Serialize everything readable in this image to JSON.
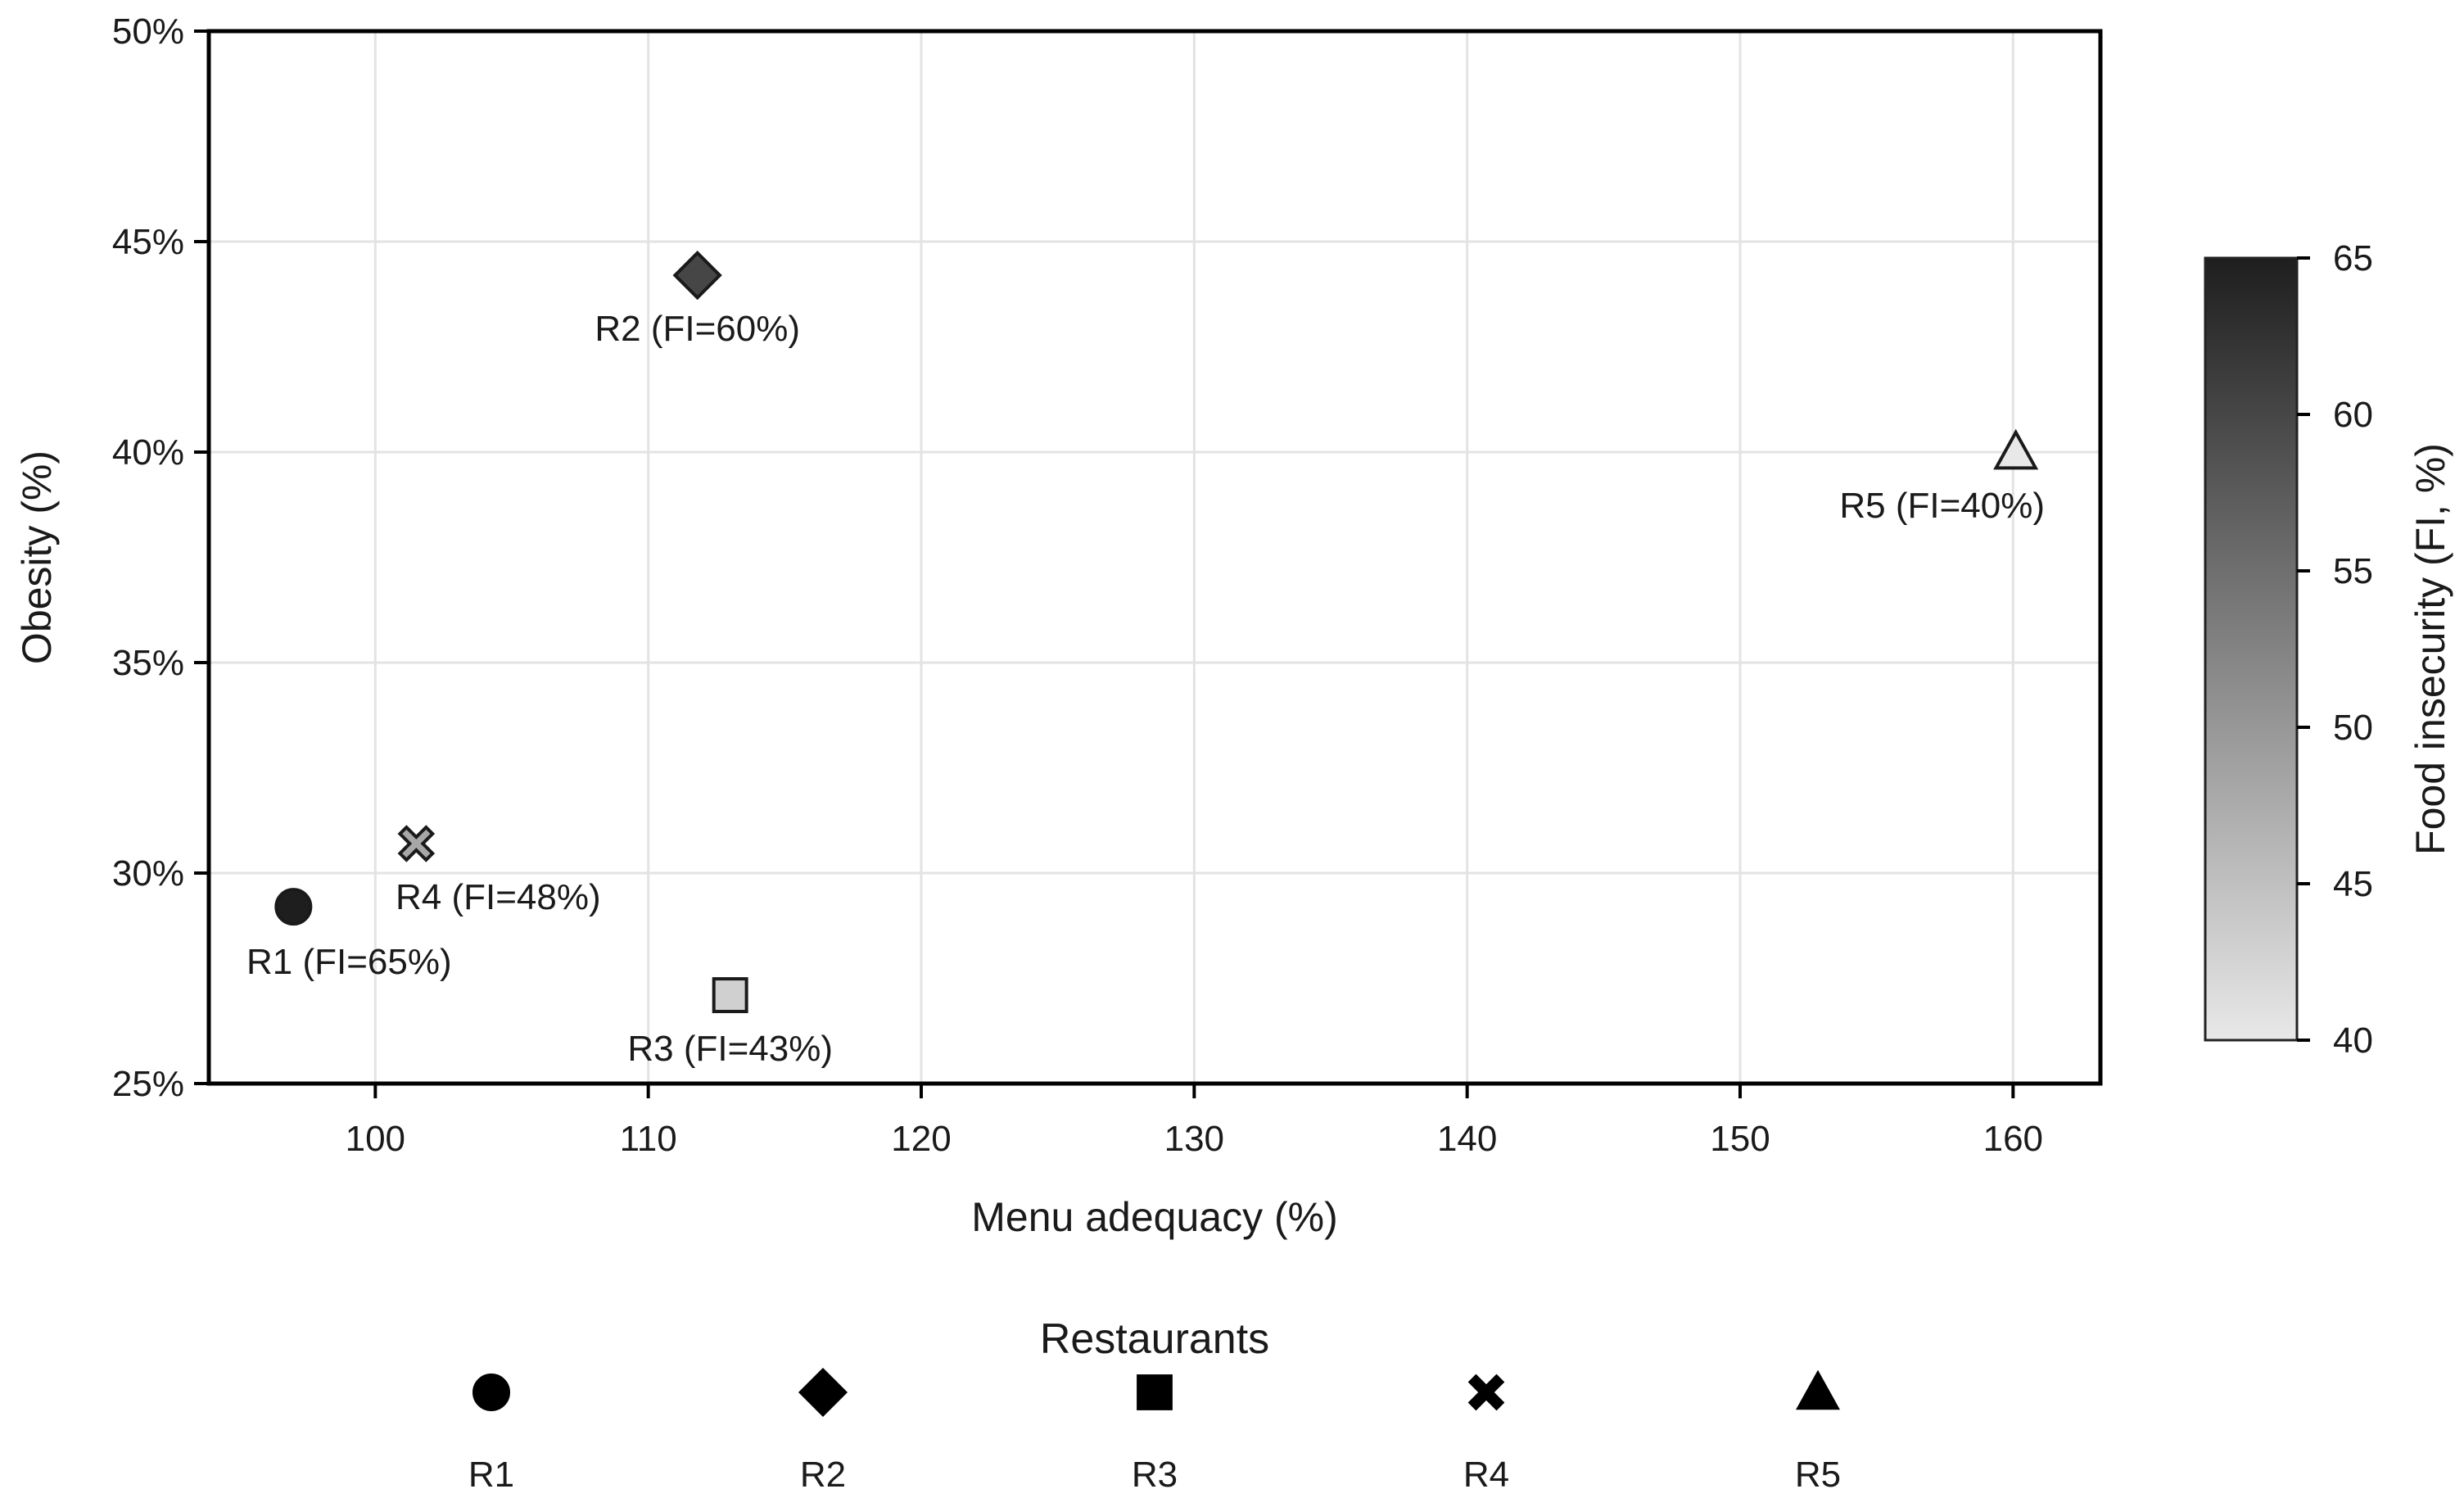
{
  "chart_data": {
    "type": "scatter",
    "xlabel": "Menu adequacy (%)",
    "ylabel": "Obesity (%)",
    "xlim": [
      93.9,
      163.2
    ],
    "ylim": [
      25,
      50
    ],
    "x_ticks": [
      100,
      110,
      120,
      130,
      140,
      150,
      160
    ],
    "y_ticks": [
      25,
      30,
      35,
      40,
      45,
      50
    ],
    "y_tick_labels": [
      "25%",
      "30%",
      "35%",
      "40%",
      "45%",
      "50%"
    ],
    "grid": true,
    "points": [
      {
        "id": "R1",
        "x": 97.0,
        "y": 29.2,
        "fi": 65,
        "marker": "circle",
        "label": "R1 (FI=65%)"
      },
      {
        "id": "R2",
        "x": 111.8,
        "y": 44.2,
        "fi": 60,
        "marker": "diamond",
        "label": "R2 (FI=60%)"
      },
      {
        "id": "R3",
        "x": 113.0,
        "y": 27.1,
        "fi": 43,
        "marker": "square",
        "label": "R3 (FI=43%)"
      },
      {
        "id": "R4",
        "x": 101.5,
        "y": 30.7,
        "fi": 48,
        "marker": "x",
        "label": "R4 (FI=48%)"
      },
      {
        "id": "R5",
        "x": 160.1,
        "y": 40.0,
        "fi": 40,
        "marker": "triangle",
        "label": "R5 (FI=40%)"
      }
    ],
    "colorbar": {
      "label": "Food insecurity (FI, %)",
      "min": 40,
      "max": 65,
      "ticks": [
        40,
        45,
        50,
        55,
        60,
        65
      ],
      "color_low": "#e8e8e8",
      "color_high": "#1e1e1e"
    },
    "legend": {
      "title": "Restaurants",
      "position": "bottom-center",
      "items": [
        {
          "label": "R1",
          "marker": "circle"
        },
        {
          "label": "R2",
          "marker": "diamond"
        },
        {
          "label": "R3",
          "marker": "square"
        },
        {
          "label": "R4",
          "marker": "x"
        },
        {
          "label": "R5",
          "marker": "triangle"
        }
      ]
    }
  }
}
